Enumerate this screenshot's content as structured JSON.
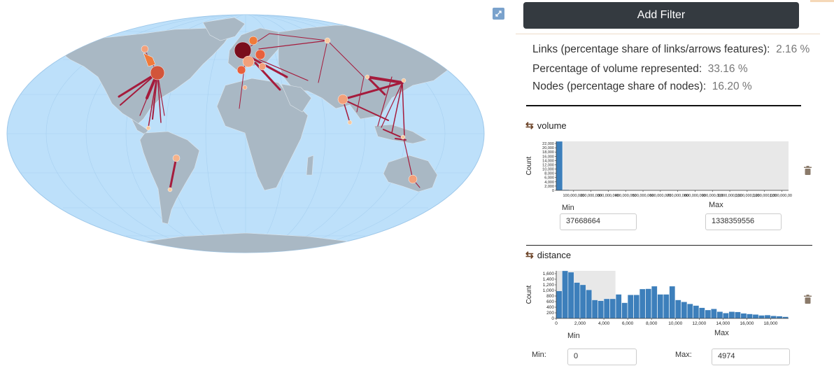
{
  "filter_panel": {
    "add_filter_label": "Add Filter",
    "stats": [
      {
        "label": "Links (percentage share of links/arrows features):",
        "value": "2.16 %"
      },
      {
        "label": "Percentage of volume represented:",
        "value": "33.16 %"
      },
      {
        "label": "Nodes (percentage share of nodes):",
        "value": "16.20 %"
      }
    ]
  },
  "map": {
    "ocean_color": "#bde0fa",
    "land_color": "#a9b8c4",
    "link_color": "#a51b3c"
  },
  "filters": [
    {
      "name": "volume",
      "icon": "swap-arrows-icon",
      "min_label": "Min",
      "max_label": "Max",
      "min_value": "37668664",
      "max_value": "1338359556"
    },
    {
      "name": "distance",
      "icon": "swap-arrows-icon",
      "min_label": "Min",
      "max_label": "Max",
      "min_input_label": "Min:",
      "max_input_label": "Max:",
      "min_value": "0",
      "max_value": "4974"
    }
  ],
  "chart_data": [
    {
      "type": "bar",
      "ylabel": "Count",
      "xlabel": "",
      "y_ticks": [
        "22,000",
        "20,000",
        "18,000",
        "16,000",
        "14,000",
        "12,000",
        "10,000",
        "8,000",
        "6,000",
        "4,000",
        "2,000",
        "0"
      ],
      "x_ticks": [
        "100,000,000",
        "200,000,000",
        "300,000,000",
        "400,000,000",
        "500,000,000",
        "600,000,000",
        "700,000,000",
        "800,000,000",
        "900,000,000",
        "1,000,000,000",
        "1,100,000,000",
        "1,200,000,000",
        "1,300,000,000"
      ],
      "ylim": [
        0,
        23000
      ],
      "xlim": [
        0,
        1338359556
      ],
      "bins_start": [
        0,
        37668664,
        75337328
      ],
      "values": [
        23000,
        300,
        60
      ],
      "selected_range": [
        37668664,
        1338359556
      ]
    },
    {
      "type": "bar",
      "ylabel": "Count",
      "xlabel": "",
      "y_ticks": [
        "1,600",
        "1,400",
        "1,200",
        "1,000",
        "800",
        "600",
        "400",
        "200",
        "0"
      ],
      "x_ticks": [
        "0",
        "2,000",
        "4,000",
        "6,000",
        "8,000",
        "10,000",
        "12,000",
        "14,000",
        "16,000",
        "18,000"
      ],
      "ylim": [
        0,
        1700
      ],
      "xlim": [
        0,
        19500
      ],
      "bin_width": 500,
      "values": [
        980,
        1700,
        1650,
        1280,
        1200,
        1020,
        660,
        630,
        700,
        700,
        860,
        560,
        840,
        840,
        1050,
        1060,
        1150,
        860,
        860,
        1150,
        660,
        590,
        520,
        460,
        380,
        300,
        340,
        240,
        190,
        240,
        230,
        180,
        160,
        140,
        110,
        120,
        90,
        80,
        60
      ],
      "selected_range": [
        0,
        4974
      ]
    }
  ]
}
